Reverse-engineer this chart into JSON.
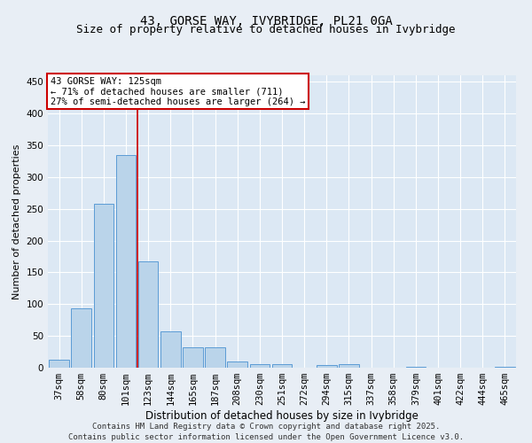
{
  "title1": "43, GORSE WAY, IVYBRIDGE, PL21 0GA",
  "title2": "Size of property relative to detached houses in Ivybridge",
  "xlabel": "Distribution of detached houses by size in Ivybridge",
  "ylabel": "Number of detached properties",
  "categories": [
    "37sqm",
    "58sqm",
    "80sqm",
    "101sqm",
    "123sqm",
    "144sqm",
    "165sqm",
    "187sqm",
    "208sqm",
    "230sqm",
    "251sqm",
    "272sqm",
    "294sqm",
    "315sqm",
    "337sqm",
    "358sqm",
    "379sqm",
    "401sqm",
    "422sqm",
    "444sqm",
    "465sqm"
  ],
  "values": [
    12,
    93,
    258,
    335,
    167,
    57,
    32,
    32,
    10,
    6,
    5,
    0,
    4,
    5,
    0,
    0,
    2,
    0,
    0,
    0,
    2
  ],
  "bar_color": "#bad4ea",
  "bar_edge_color": "#5b9bd5",
  "red_line_color": "#cc0000",
  "red_line_index": 3.5,
  "annotation_title": "43 GORSE WAY: 125sqm",
  "annotation_line1": "← 71% of detached houses are smaller (711)",
  "annotation_line2": "27% of semi-detached houses are larger (264) →",
  "annotation_box_color": "#ffffff",
  "annotation_box_edge": "#cc0000",
  "ylim": [
    0,
    460
  ],
  "yticks": [
    0,
    50,
    100,
    150,
    200,
    250,
    300,
    350,
    400,
    450
  ],
  "footer1": "Contains HM Land Registry data © Crown copyright and database right 2025.",
  "footer2": "Contains public sector information licensed under the Open Government Licence v3.0.",
  "bg_color": "#e8eef5",
  "plot_bg_color": "#dce8f4",
  "grid_color": "#ffffff",
  "title1_fontsize": 10,
  "title2_fontsize": 9,
  "xlabel_fontsize": 8.5,
  "ylabel_fontsize": 8,
  "tick_fontsize": 7.5,
  "footer_fontsize": 6.5,
  "ann_fontsize": 7.5
}
